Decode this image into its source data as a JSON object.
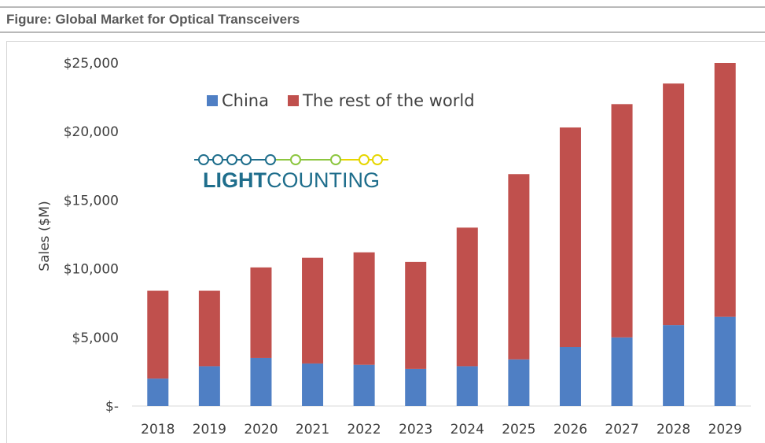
{
  "figure_title": "Figure: Global Market for Optical Transceivers",
  "logo": {
    "text_bold": "LIGHT",
    "text_regular": "COUNTING",
    "colors": [
      "#1f6e8c",
      "#8cc63f",
      "#e6d600"
    ]
  },
  "colors": {
    "china": "#4f7fc4",
    "rest": "#c0504d"
  },
  "chart_data": {
    "type": "bar",
    "stacked": true,
    "title": "",
    "xlabel": "",
    "ylabel": "Sales ($M)",
    "ylim": [
      0,
      25000
    ],
    "grid": false,
    "legend_position": "top-left",
    "categories": [
      "2018",
      "2019",
      "2020",
      "2021",
      "2022",
      "2023",
      "2024",
      "2025",
      "2026",
      "2027",
      "2028",
      "2029"
    ],
    "ytick_values": [
      0,
      5000,
      10000,
      15000,
      20000,
      25000
    ],
    "ytick_labels": [
      "$-",
      "$5,000",
      "$10,000",
      "$15,000",
      "$20,000",
      "$25,000"
    ],
    "series": [
      {
        "name": "China",
        "color": "#4f7fc4",
        "values": [
          2000,
          2900,
          3500,
          3100,
          3000,
          2700,
          2900,
          3400,
          4300,
          5000,
          5900,
          6500
        ]
      },
      {
        "name": "The rest of the world",
        "color": "#c0504d",
        "values": [
          6400,
          5500,
          6600,
          7700,
          8200,
          7800,
          10100,
          13500,
          16000,
          17000,
          17600,
          18500
        ]
      }
    ]
  }
}
